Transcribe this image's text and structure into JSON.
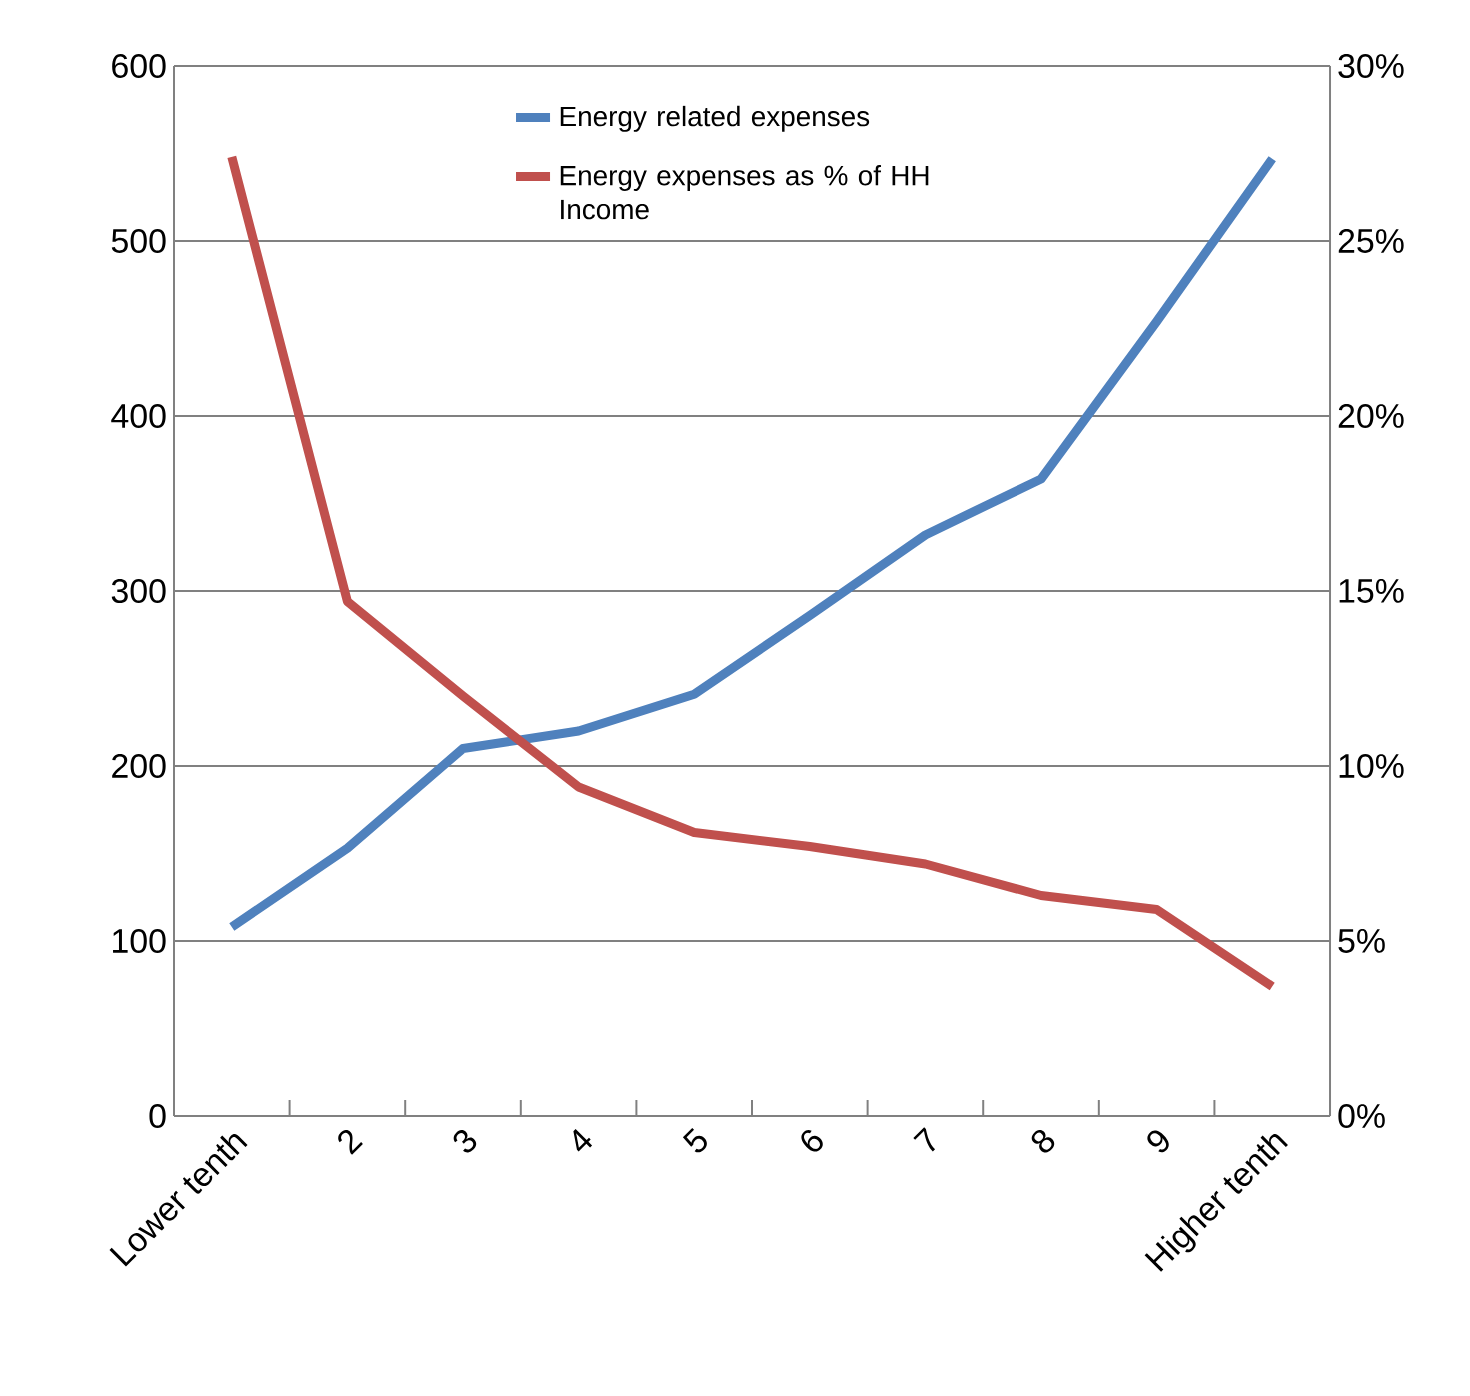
{
  "chart_data": {
    "type": "line",
    "categories": [
      "Lower tenth",
      "2",
      "3",
      "4",
      "5",
      "6",
      "7",
      "8",
      "9",
      "Higher tenth"
    ],
    "series": [
      {
        "name": "Energy related expenses",
        "color": "#4f81bd",
        "values": [
          108,
          153,
          210,
          220,
          241,
          286,
          332,
          364,
          454,
          547
        ]
      },
      {
        "name": "Energy expenses as % of HH Income",
        "color": "#c0504d",
        "axis": "y2",
        "values": [
          27.4,
          14.7,
          12.0,
          9.4,
          8.1,
          7.7,
          7.2,
          6.3,
          5.9,
          3.7
        ]
      }
    ],
    "ylim": [
      0,
      600
    ],
    "yticks": [
      0,
      100,
      200,
      300,
      400,
      500,
      600
    ],
    "y2lim": [
      0,
      30
    ],
    "y2ticks": [
      {
        "value": 0,
        "label": "0%"
      },
      {
        "value": 5,
        "label": "5%"
      },
      {
        "value": 10,
        "label": "10%"
      },
      {
        "value": 15,
        "label": "15%"
      },
      {
        "value": 20,
        "label": "20%"
      },
      {
        "value": 25,
        "label": "25%"
      },
      {
        "value": 30,
        "label": "30%"
      }
    ],
    "grid": "y",
    "legend": "top",
    "marker": "none",
    "line_style": "solid"
  }
}
